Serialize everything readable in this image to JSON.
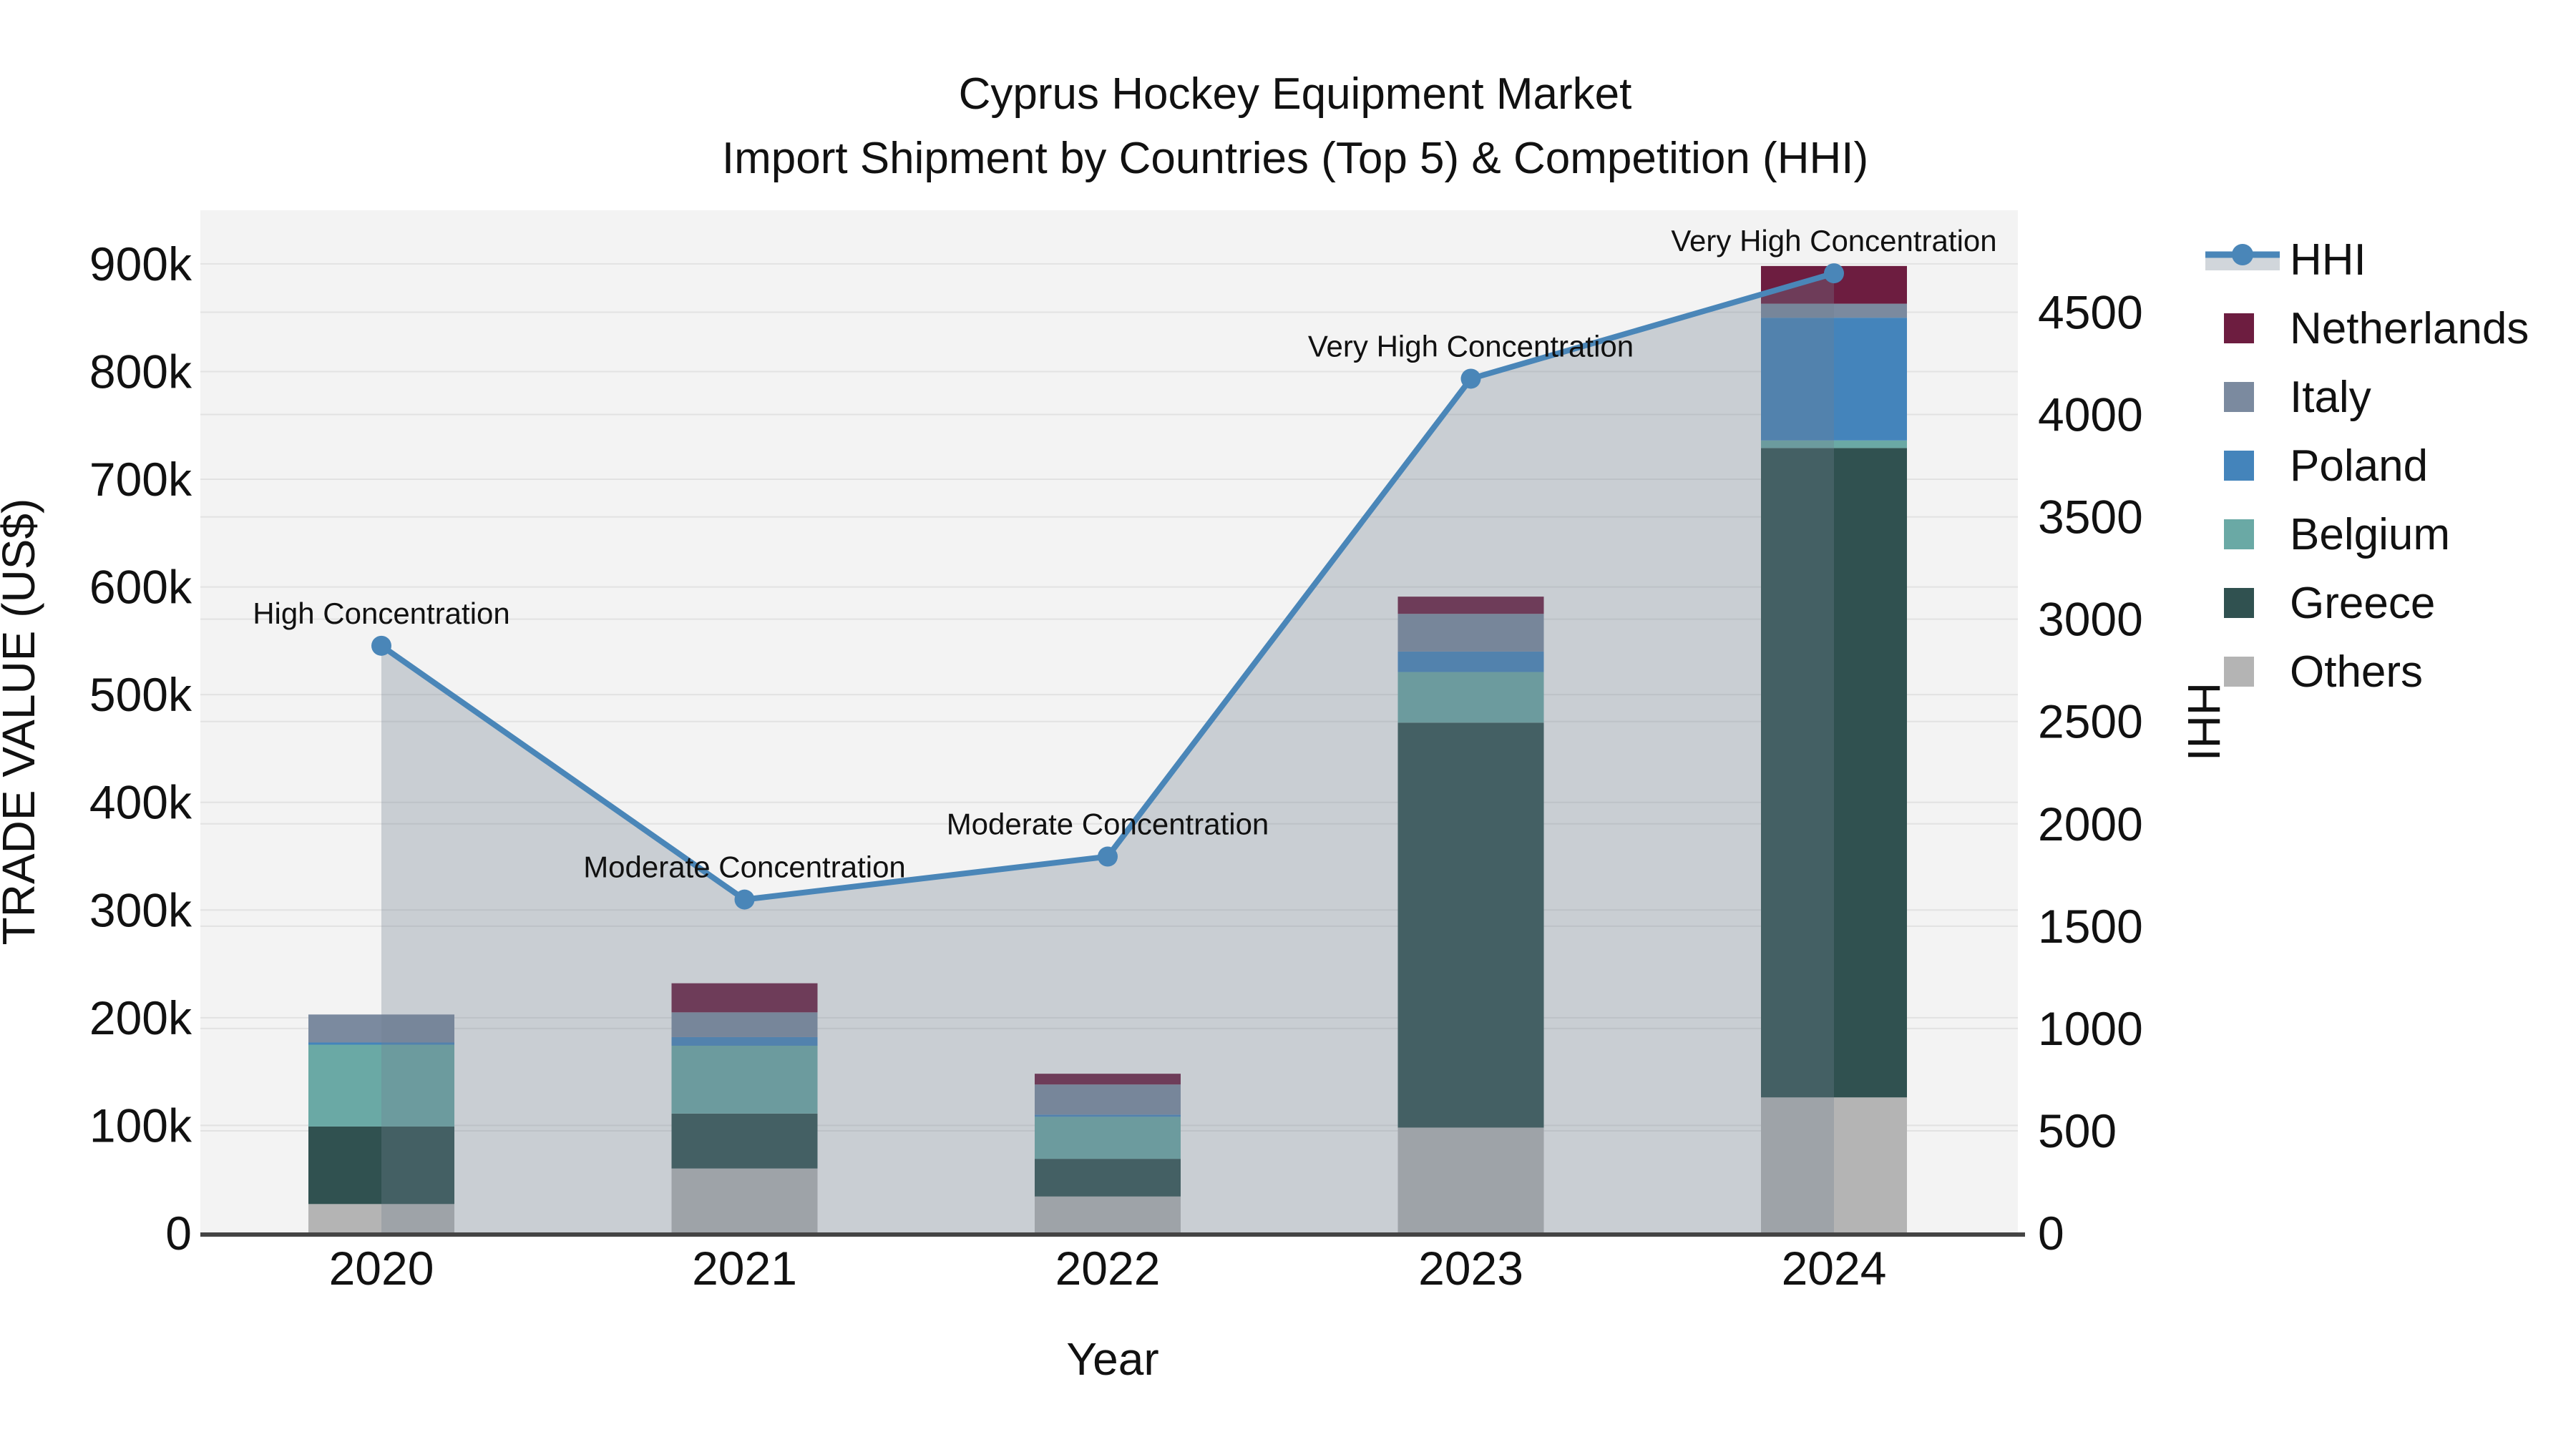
{
  "title": {
    "line1": "Cyprus Hockey Equipment Market",
    "line2": "Import Shipment by Countries (Top 5) & Competition (HHI)"
  },
  "axes": {
    "x_title": "Year",
    "left_title": "TRADE VALUE (US$)",
    "right_title": "HHI",
    "left_tick_labels": [
      "0",
      "100k",
      "200k",
      "300k",
      "400k",
      "500k",
      "600k",
      "700k",
      "800k",
      "900k"
    ],
    "left_tick_values": [
      0,
      100000,
      200000,
      300000,
      400000,
      500000,
      600000,
      700000,
      800000,
      900000
    ],
    "right_tick_labels": [
      "0",
      "500",
      "1000",
      "1500",
      "2000",
      "2500",
      "3000",
      "3500",
      "4000",
      "4500"
    ],
    "right_tick_values": [
      0,
      500,
      1000,
      1500,
      2000,
      2500,
      3000,
      3500,
      4000,
      4500
    ]
  },
  "colors": {
    "plot_background": "#f3f3f3",
    "gridline": "#e2e2e2",
    "axis_line": "#444444",
    "hhi_line": "#4a86b8",
    "hhi_fill": "rgba(112,128,144,0.32)",
    "netherlands": "#6d1d40",
    "italy": "#7b8a9f",
    "poland": "#4484bb",
    "belgium": "#6aa9a5",
    "greece": "#305150",
    "others": "#b4b4b4",
    "text": "#111111"
  },
  "chart_data": {
    "type": "combo-stacked-bar-line",
    "categories": [
      "2020",
      "2021",
      "2022",
      "2023",
      "2024"
    ],
    "bar_unit": "US$",
    "bar_stack_order_note": "bottom to top",
    "bar_series": [
      {
        "name": "Others",
        "color": "#b4b4b4",
        "values": [
          27000,
          60000,
          34000,
          98000,
          126000
        ]
      },
      {
        "name": "Greece",
        "color": "#305150",
        "values": [
          72000,
          51000,
          35000,
          376000,
          603000
        ]
      },
      {
        "name": "Belgium",
        "color": "#6aa9a5",
        "values": [
          76000,
          63000,
          39000,
          47000,
          7000
        ]
      },
      {
        "name": "Poland",
        "color": "#4484bb",
        "values": [
          2000,
          8000,
          2000,
          19000,
          114000
        ]
      },
      {
        "name": "Italy",
        "color": "#7b8a9f",
        "values": [
          26000,
          23000,
          28000,
          35000,
          13000
        ]
      },
      {
        "name": "Netherlands",
        "color": "#6d1d40",
        "values": [
          0,
          27000,
          10000,
          16000,
          35000
        ]
      }
    ],
    "line_series": {
      "name": "HHI",
      "axis": "right",
      "color": "#4a86b8",
      "fill": "rgba(112,128,144,0.32)",
      "values": [
        2870,
        1630,
        1840,
        4175,
        4690
      ]
    },
    "annotations": [
      {
        "category": "2020",
        "text": "High Concentration"
      },
      {
        "category": "2021",
        "text": "Moderate Concentration"
      },
      {
        "category": "2022",
        "text": "Moderate Concentration"
      },
      {
        "category": "2023",
        "text": "Very High Concentration"
      },
      {
        "category": "2024",
        "text": "Very High Concentration"
      }
    ],
    "left_axis_range": [
      0,
      950000
    ],
    "right_axis_range": [
      0,
      5000
    ],
    "grid": true,
    "legend_position": "right"
  },
  "legend": {
    "items": [
      {
        "label": "HHI",
        "type": "line",
        "color": "#4a86b8"
      },
      {
        "label": "Netherlands",
        "type": "square",
        "color": "#6d1d40"
      },
      {
        "label": "Italy",
        "type": "square",
        "color": "#7b8a9f"
      },
      {
        "label": "Poland",
        "type": "square",
        "color": "#4484bb"
      },
      {
        "label": "Belgium",
        "type": "square",
        "color": "#6aa9a5"
      },
      {
        "label": "Greece",
        "type": "square",
        "color": "#305150"
      },
      {
        "label": "Others",
        "type": "square",
        "color": "#b4b4b4"
      }
    ]
  }
}
